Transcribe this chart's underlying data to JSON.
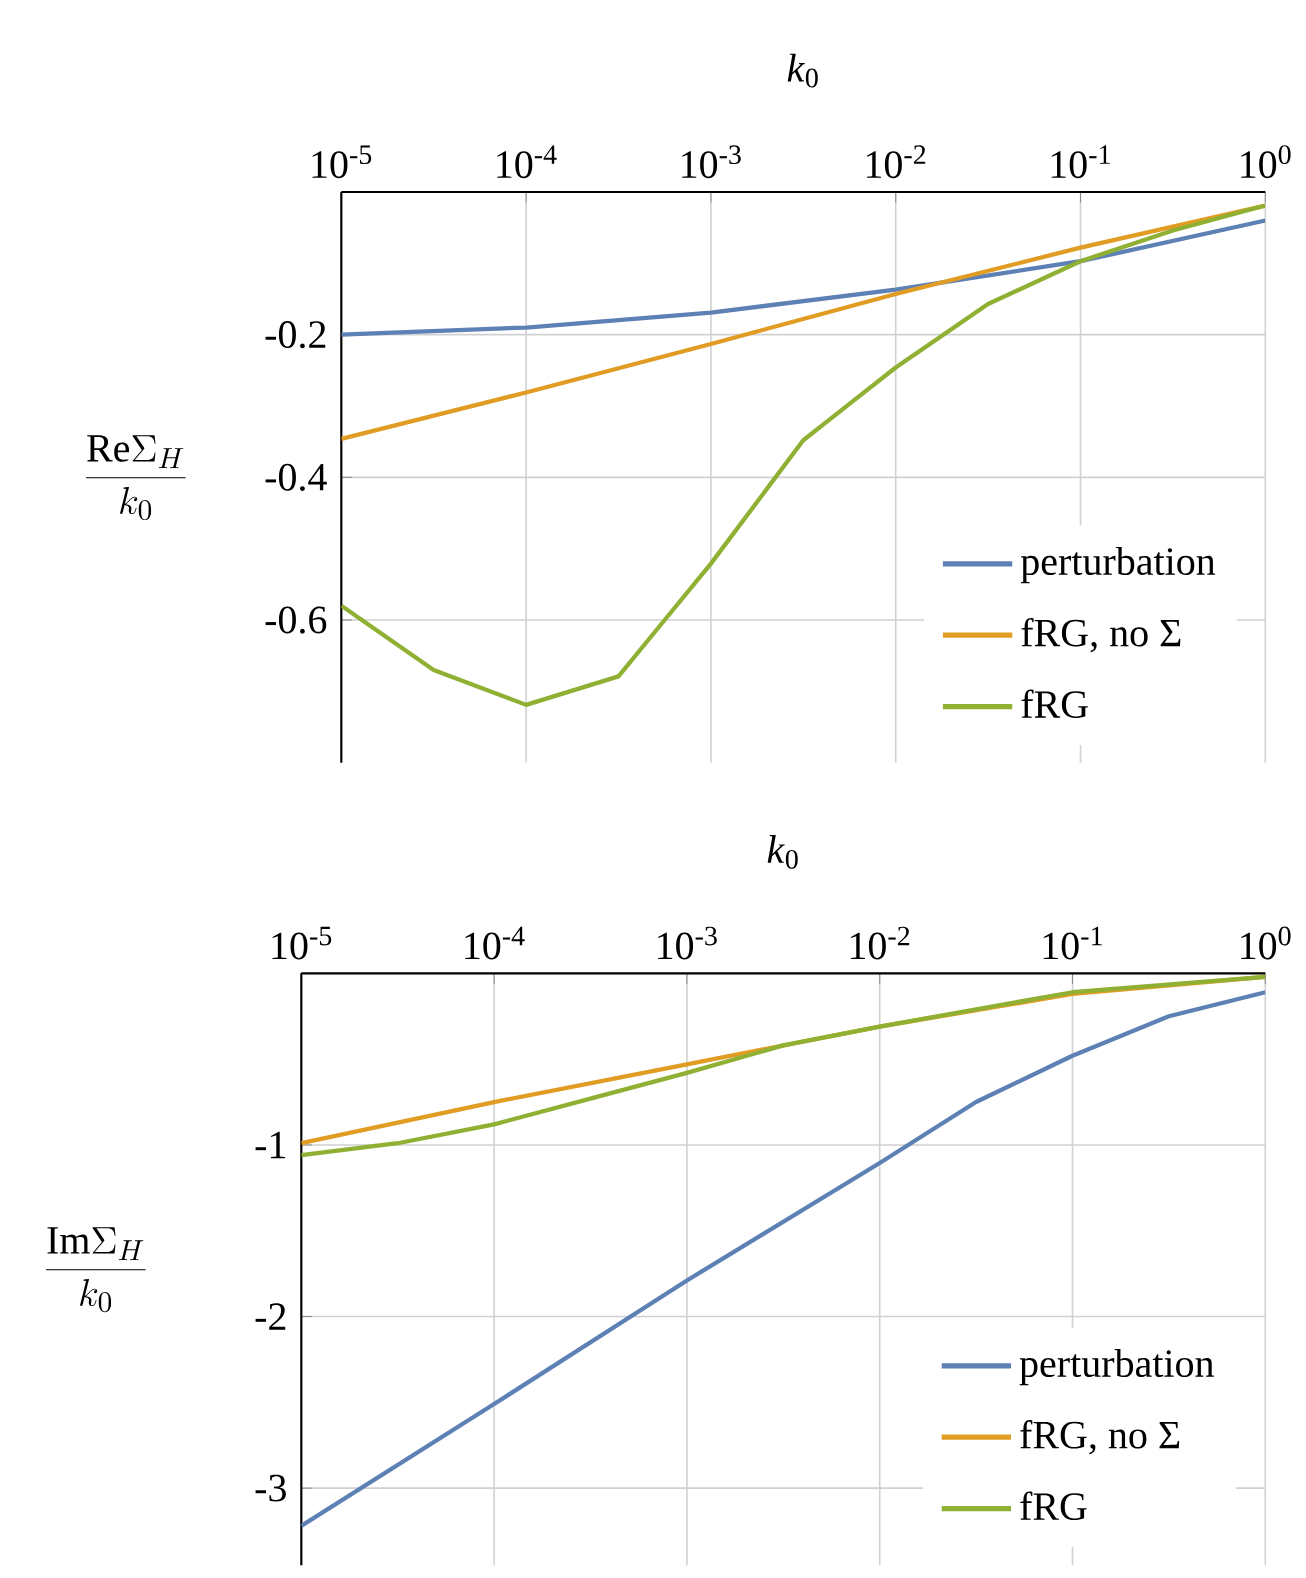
{
  "chart_data": [
    {
      "type": "line",
      "xlabel": "*k*$_{0}$",
      "ylabel": "\\frac{\\mathrm{Re}\\Sigma_H}{k_0}",
      "log": "x",
      "grid": true,
      "legend": "bottom right",
      "xlim": [
        1e-05,
        1
      ],
      "ylim": [
        -0.8,
        0
      ],
      "xticks": [
        {
          "value": 1e-05,
          "label": "10$^{-5}$"
        },
        {
          "value": 0.0001,
          "label": "10$^{-4}$"
        },
        {
          "value": 0.001,
          "label": "10$^{-3}$"
        },
        {
          "value": 0.01,
          "label": "10$^{-2}$"
        },
        {
          "value": 0.1,
          "label": "10$^{-1}$"
        },
        {
          "value": 1,
          "label": "10$^{0}$"
        }
      ],
      "yticks": [
        -0.6,
        -0.4,
        -0.2
      ],
      "series": [
        {
          "name": "perturbation",
          "color": "#5e81b5",
          "x": [
            1e-05,
            0.0001,
            0.001,
            0.01,
            0.1,
            1
          ],
          "values": [
            -0.2,
            -0.19,
            -0.169,
            -0.137,
            -0.097,
            -0.04
          ]
        },
        {
          "name": "fRG, no Σ",
          "color": "#e19c24",
          "x": [
            1e-05,
            0.0001,
            0.001,
            0.01,
            0.1,
            1
          ],
          "values": [
            -0.346,
            -0.281,
            -0.213,
            -0.143,
            -0.078,
            -0.019
          ]
        },
        {
          "name": "fRG",
          "color": "#8fb032",
          "x": [
            1e-05,
            3.16e-05,
            0.0001,
            0.000316,
            0.000562,
            0.001,
            0.00316,
            0.00562,
            0.01,
            0.0316,
            0.1,
            0.316,
            1
          ],
          "values": [
            -0.58,
            -0.67,
            -0.719,
            -0.679,
            -0.6,
            -0.521,
            -0.348,
            -0.297,
            -0.246,
            -0.157,
            -0.097,
            -0.054,
            -0.019
          ]
        }
      ]
    },
    {
      "type": "line",
      "xlabel": "*k*$_{0}$",
      "ylabel": "\\frac{\\mathrm{Im}\\Sigma_H}{k_0}",
      "log": "x",
      "grid": true,
      "legend": "bottom right",
      "xlim": [
        1e-05,
        1
      ],
      "ylim": [
        -3.45,
        0
      ],
      "xticks": [
        {
          "value": 1e-05,
          "label": "10$^{-5}$"
        },
        {
          "value": 0.0001,
          "label": "10$^{-4}$"
        },
        {
          "value": 0.001,
          "label": "10$^{-3}$"
        },
        {
          "value": 0.01,
          "label": "10$^{-2}$"
        },
        {
          "value": 0.1,
          "label": "10$^{-1}$"
        },
        {
          "value": 1,
          "label": "10$^{0}$"
        }
      ],
      "yticks": [
        -3,
        -2,
        -1
      ],
      "series": [
        {
          "name": "perturbation",
          "color": "#5e81b5",
          "x": [
            1e-05,
            0.0001,
            0.001,
            0.01,
            0.0316,
            0.1,
            0.316,
            1
          ],
          "values": [
            -3.22,
            -2.51,
            -1.79,
            -1.105,
            -0.75,
            -0.48,
            -0.25,
            -0.11
          ]
        },
        {
          "name": "fRG, no Σ",
          "color": "#e19c24",
          "x": [
            1e-05,
            0.0001,
            0.001,
            0.01,
            0.1,
            1
          ],
          "values": [
            -0.99,
            -0.75,
            -0.53,
            -0.31,
            -0.12,
            -0.02
          ]
        },
        {
          "name": "fRG",
          "color": "#8fb032",
          "x": [
            1e-05,
            3.16e-05,
            0.0001,
            0.000316,
            0.001,
            0.00316,
            0.01,
            0.1,
            1
          ],
          "values": [
            -1.06,
            -0.99,
            -0.88,
            -0.73,
            -0.58,
            -0.42,
            -0.31,
            -0.11,
            -0.02
          ]
        }
      ]
    }
  ]
}
